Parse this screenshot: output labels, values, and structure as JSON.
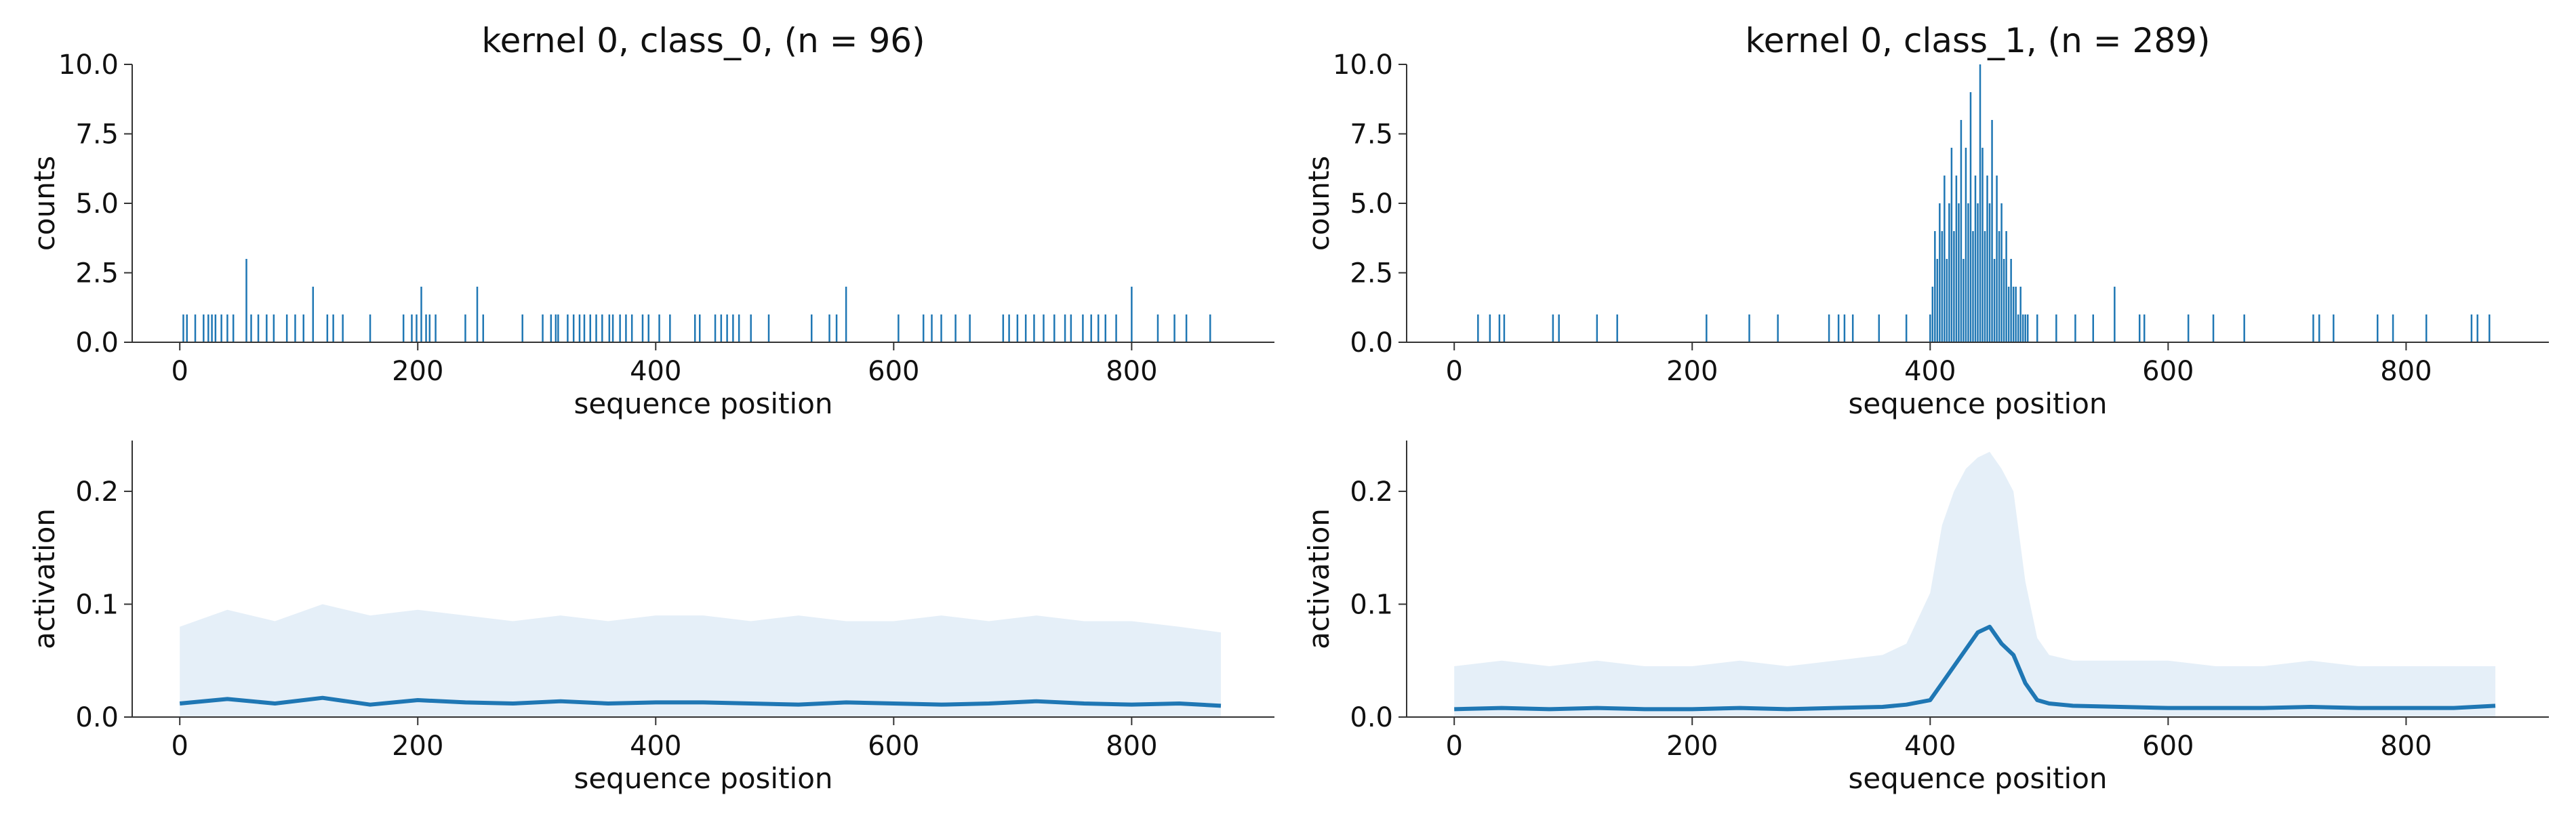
{
  "colors": {
    "primary": "#1f77b4",
    "band": "#c6dbef",
    "axis": "#333333"
  },
  "chart_data": [
    {
      "type": "bar",
      "title": "kernel 0, class_0, (n = 96)",
      "xlabel": "sequence position",
      "ylabel": "counts",
      "xlim": [
        -40,
        920
      ],
      "ylim": [
        0,
        10
      ],
      "xticks": [
        "0",
        "200",
        "400",
        "600",
        "800"
      ],
      "yticks": [
        "0.0",
        "2.5",
        "5.0",
        "7.5",
        "10.0"
      ],
      "x": [
        3,
        6,
        13,
        20,
        24,
        27,
        30,
        35,
        40,
        45,
        56,
        60,
        66,
        73,
        79,
        90,
        97,
        104,
        112,
        124,
        129,
        137,
        160,
        188,
        195,
        199,
        203,
        207,
        210,
        215,
        240,
        250,
        255,
        288,
        305,
        312,
        316,
        318,
        326,
        331,
        336,
        340,
        345,
        350,
        355,
        361,
        364,
        370,
        375,
        380,
        389,
        394,
        403,
        412,
        433,
        437,
        450,
        455,
        460,
        465,
        470,
        480,
        495,
        531,
        546,
        552,
        560,
        604,
        625,
        632,
        640,
        652,
        664,
        692,
        697,
        704,
        711,
        718,
        726,
        735,
        744,
        749,
        759,
        766,
        772,
        778,
        787,
        800,
        822,
        836,
        846,
        866
      ],
      "values": [
        1,
        1,
        1,
        1,
        1,
        1,
        1,
        1,
        1,
        1,
        3,
        1,
        1,
        1,
        1,
        1,
        1,
        1,
        2,
        1,
        1,
        1,
        1,
        1,
        1,
        1,
        2,
        1,
        1,
        1,
        1,
        2,
        1,
        1,
        1,
        1,
        1,
        1,
        1,
        1,
        1,
        1,
        1,
        1,
        1,
        1,
        1,
        1,
        1,
        1,
        1,
        1,
        1,
        1,
        1,
        1,
        1,
        1,
        1,
        1,
        1,
        1,
        1,
        1,
        1,
        1,
        2,
        1,
        1,
        1,
        1,
        1,
        1,
        1,
        1,
        1,
        1,
        1,
        1,
        1,
        1,
        1,
        1,
        1,
        1,
        1,
        1,
        2,
        1,
        1,
        1,
        1
      ]
    },
    {
      "type": "bar",
      "title": "kernel 0, class_1, (n = 289)",
      "xlabel": "sequence position",
      "ylabel": "counts",
      "xlim": [
        -40,
        920
      ],
      "ylim": [
        0,
        10
      ],
      "xticks": [
        "0",
        "200",
        "400",
        "600",
        "800"
      ],
      "yticks": [
        "0.0",
        "2.5",
        "5.0",
        "7.5",
        "10.0"
      ],
      "x": [
        20,
        30,
        38,
        42,
        83,
        88,
        120,
        137,
        212,
        248,
        272,
        315,
        323,
        328,
        335,
        357,
        380,
        400,
        402,
        404,
        406,
        408,
        410,
        412,
        414,
        416,
        418,
        420,
        422,
        424,
        426,
        428,
        430,
        432,
        434,
        436,
        438,
        440,
        442,
        444,
        446,
        448,
        450,
        452,
        454,
        456,
        458,
        460,
        462,
        464,
        466,
        468,
        470,
        472,
        474,
        476,
        478,
        480,
        482,
        490,
        506,
        522,
        537,
        555,
        576,
        580,
        617,
        638,
        664,
        722,
        727,
        739,
        776,
        789,
        817,
        855,
        860,
        870
      ],
      "values": [
        1,
        1,
        1,
        1,
        1,
        1,
        1,
        1,
        1,
        1,
        1,
        1,
        1,
        1,
        1,
        1,
        1,
        1,
        2,
        4,
        3,
        5,
        4,
        6,
        3,
        5,
        7,
        4,
        6,
        5,
        8,
        3,
        7,
        5,
        9,
        4,
        6,
        5,
        10,
        7,
        4,
        6,
        5,
        8,
        3,
        6,
        4,
        5,
        3,
        4,
        2,
        3,
        2,
        2,
        1,
        2,
        1,
        1,
        1,
        1,
        1,
        1,
        1,
        2,
        1,
        1,
        1,
        1,
        1,
        1,
        1,
        1,
        1,
        1,
        1,
        1,
        1,
        1
      ]
    },
    {
      "type": "area",
      "xlabel": "sequence position",
      "ylabel": "activation",
      "xlim": [
        -40,
        920
      ],
      "ylim": [
        0,
        0.245
      ],
      "xticks": [
        "0",
        "200",
        "400",
        "600",
        "800"
      ],
      "yticks": [
        "0.0",
        "0.1",
        "0.2"
      ],
      "x": [
        0,
        40,
        80,
        120,
        160,
        200,
        240,
        280,
        320,
        360,
        400,
        440,
        480,
        520,
        560,
        600,
        640,
        680,
        720,
        760,
        800,
        840,
        875
      ],
      "mean": [
        0.012,
        0.016,
        0.012,
        0.017,
        0.011,
        0.015,
        0.013,
        0.012,
        0.014,
        0.012,
        0.013,
        0.013,
        0.012,
        0.011,
        0.013,
        0.012,
        0.011,
        0.012,
        0.014,
        0.012,
        0.011,
        0.012,
        0.01
      ],
      "upper": [
        0.08,
        0.095,
        0.085,
        0.1,
        0.09,
        0.095,
        0.09,
        0.085,
        0.09,
        0.085,
        0.09,
        0.09,
        0.085,
        0.09,
        0.085,
        0.085,
        0.09,
        0.085,
        0.09,
        0.085,
        0.085,
        0.08,
        0.075
      ]
    },
    {
      "type": "area",
      "xlabel": "sequence position",
      "ylabel": "activation",
      "xlim": [
        -40,
        920
      ],
      "ylim": [
        0,
        0.245
      ],
      "xticks": [
        "0",
        "200",
        "400",
        "600",
        "800"
      ],
      "yticks": [
        "0.0",
        "0.1",
        "0.2"
      ],
      "x": [
        0,
        40,
        80,
        120,
        160,
        200,
        240,
        280,
        320,
        360,
        380,
        400,
        410,
        420,
        430,
        440,
        450,
        460,
        470,
        480,
        490,
        500,
        520,
        560,
        600,
        640,
        680,
        720,
        760,
        800,
        840,
        875
      ],
      "mean": [
        0.007,
        0.008,
        0.007,
        0.008,
        0.007,
        0.007,
        0.008,
        0.007,
        0.008,
        0.009,
        0.011,
        0.015,
        0.03,
        0.045,
        0.06,
        0.075,
        0.08,
        0.065,
        0.055,
        0.03,
        0.015,
        0.012,
        0.01,
        0.009,
        0.008,
        0.008,
        0.008,
        0.009,
        0.008,
        0.008,
        0.008,
        0.01
      ],
      "upper": [
        0.045,
        0.05,
        0.045,
        0.05,
        0.045,
        0.045,
        0.05,
        0.045,
        0.05,
        0.055,
        0.065,
        0.11,
        0.17,
        0.2,
        0.22,
        0.23,
        0.235,
        0.22,
        0.2,
        0.12,
        0.07,
        0.055,
        0.05,
        0.05,
        0.05,
        0.045,
        0.045,
        0.05,
        0.045,
        0.045,
        0.045,
        0.045
      ]
    }
  ]
}
